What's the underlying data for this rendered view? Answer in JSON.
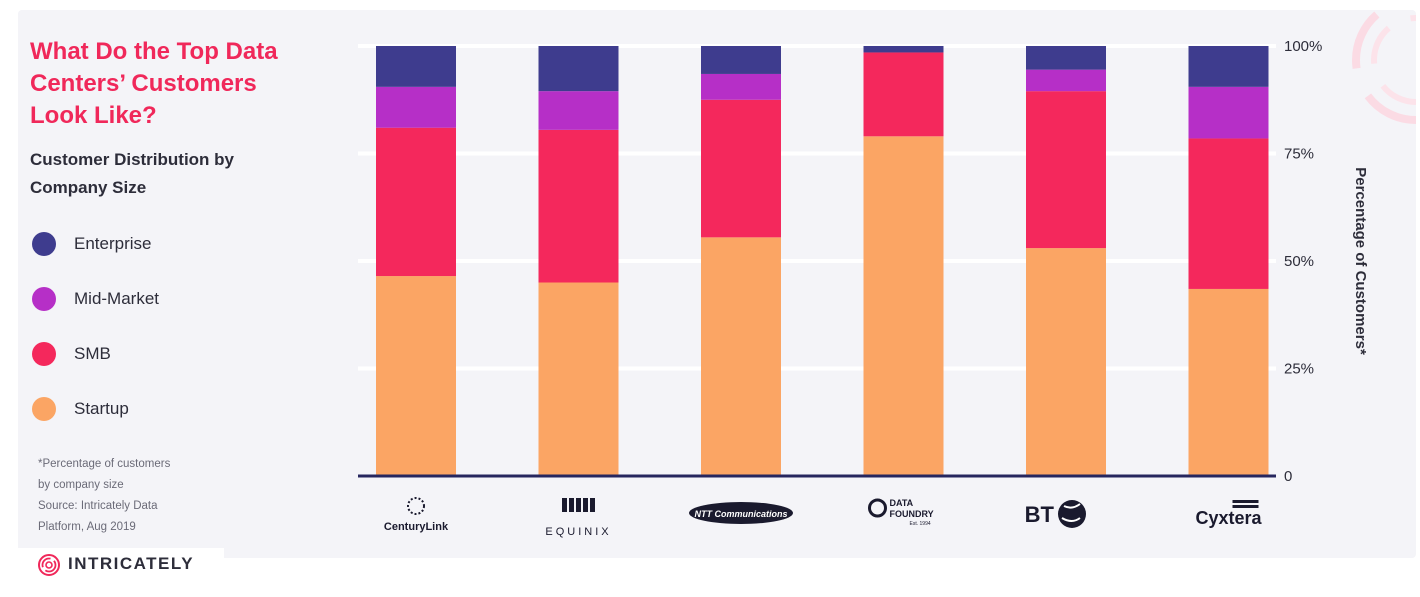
{
  "header": {
    "title_lines": [
      "What Do the Top Data",
      "Centers’ Customers",
      "Look Like?"
    ],
    "subtitle_lines": [
      "Customer Distribution by",
      "Company Size"
    ]
  },
  "legend": [
    {
      "label": "Enterprise",
      "color": "#3e3c8e"
    },
    {
      "label": "Mid-Market",
      "color": "#b62fc7"
    },
    {
      "label": "SMB",
      "color": "#f4285c"
    },
    {
      "label": "Startup",
      "color": "#fba564"
    }
  ],
  "footnote": [
    "*Percentage of customers",
    "by company size",
    "Source: Intricately Data",
    "Platform, Aug 2019"
  ],
  "brand": {
    "name": "INTRICATELY",
    "icon": "fingerprint-logo-icon",
    "color": "#f0285a"
  },
  "chart_data": {
    "type": "bar",
    "stacked": true,
    "categories": [
      "CenturyLink",
      "EQUINIX",
      "NTT Communications",
      "DATA FOUNDRY",
      "BT",
      "Cyxtera"
    ],
    "category_logos": [
      "centurylink-logo-icon",
      "equinix-logo-icon",
      "ntt-communications-logo-icon",
      "data-foundry-logo-icon",
      "bt-logo-icon",
      "cyxtera-logo-icon"
    ],
    "series": [
      {
        "name": "Startup",
        "color": "#fba564",
        "values": [
          46.5,
          45,
          55.5,
          79,
          53,
          43.5
        ]
      },
      {
        "name": "SMB",
        "color": "#f4285c",
        "values": [
          34.5,
          35.5,
          32,
          19.5,
          36.5,
          35
        ]
      },
      {
        "name": "Mid-Market",
        "color": "#b62fc7",
        "values": [
          9.5,
          9,
          6,
          0,
          5,
          12
        ]
      },
      {
        "name": "Enterprise",
        "color": "#3e3c8e",
        "values": [
          9.5,
          10.5,
          6.5,
          1.5,
          5.5,
          9.5
        ]
      }
    ],
    "ylabel": "Percentage of Customers*",
    "ylim": [
      0,
      100
    ],
    "yticks": [
      {
        "value": 0,
        "label": "0"
      },
      {
        "value": 25,
        "label": "25%"
      },
      {
        "value": 50,
        "label": "50%"
      },
      {
        "value": 75,
        "label": "75%"
      },
      {
        "value": 100,
        "label": "100%"
      }
    ],
    "yaxis_side": "right",
    "grid": true,
    "legend_position": "left"
  },
  "logo_texts": {
    "centurylink": "CenturyLink",
    "equinix": "EQUINIX",
    "ntt": "NTT Communications",
    "data_foundry_1": "DATA",
    "data_foundry_2": "FOUNDRY",
    "data_foundry_3": "Est. 1994",
    "bt": "BT",
    "cyxtera": "Cyxtera"
  }
}
